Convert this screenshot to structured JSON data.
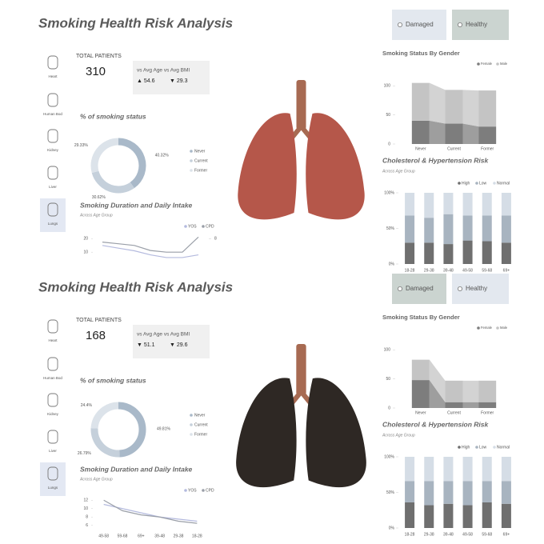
{
  "panels": [
    {
      "title": "Smoking Health Risk Analysis",
      "toggles": [
        "Damaged",
        "Healthy"
      ],
      "sidebar": [
        "Heart",
        "Human Bod",
        "Kidney",
        "Liver",
        "Lungs"
      ],
      "kpi": {
        "label": "TOTAL PATIENTS",
        "value": 310,
        "compare": "vs Avg Age vs Avg BMI",
        "age": "▲ 54.6",
        "bmi": "▼ 29.3"
      },
      "charts": [
        {
          "type": "pie",
          "title": "% of smoking status",
          "categories": [
            "Never",
            "Current",
            "Former"
          ],
          "values": [
            40.32,
            30.62,
            29.33
          ],
          "value_labels": [
            "40.32%",
            "30.62%",
            "29.33%"
          ],
          "colors": [
            "#a9b9c9",
            "#c5d0db",
            "#dce3ea"
          ]
        },
        {
          "type": "line",
          "title": "Smoking Duration and Daily Intake",
          "subtitle": "Across Age Group",
          "categories": [
            null,
            null,
            null,
            null,
            null,
            null,
            null
          ],
          "series": [
            {
              "name": "YOS",
              "color": "#b4bade",
              "values": [
                15,
                13,
                11,
                8,
                6,
                6,
                8
              ]
            },
            {
              "name": "CPD",
              "color": "#9a9fa8",
              "axis": "y2",
              "values": [
                7,
                6.5,
                6,
                4.5,
                4,
                4,
                8.5
              ]
            }
          ],
          "ylim": [
            0,
            25
          ],
          "yticks": [
            10,
            20
          ],
          "y2lim": [
            0,
            10
          ],
          "y2ticks": [
            8
          ]
        },
        {
          "type": "ribbon",
          "title": "Smoking Status By Gender",
          "categories": [
            "Never",
            "Current",
            "Former"
          ],
          "series": [
            {
              "name": "Female",
              "color": "#7d7d7d",
              "values": [
                40,
                35,
                30
              ]
            },
            {
              "name": "Male",
              "color": "#c4c4c4",
              "values": [
                65,
                58,
                62
              ]
            }
          ],
          "ylim": [
            0,
            110
          ],
          "yticks": [
            0,
            50,
            100
          ]
        },
        {
          "type": "bar",
          "stacked": true,
          "title": "Cholesterol & Hypertension Risk",
          "subtitle": "Across Age Group",
          "categories": [
            "18-28",
            "29-38",
            "39-48",
            "49-58",
            "59-68",
            "69+"
          ],
          "series": [
            {
              "name": "High",
              "color": "#6f6f6f",
              "values": [
                30,
                30,
                28,
                33,
                32,
                30
              ]
            },
            {
              "name": "Low",
              "color": "#a8b4c0",
              "values": [
                38,
                35,
                42,
                35,
                36,
                38
              ]
            },
            {
              "name": "Normal",
              "color": "#d5dde6",
              "values": [
                32,
                35,
                30,
                32,
                32,
                32
              ]
            }
          ],
          "ylim": [
            0,
            100
          ],
          "yticks": [
            {
              "value": 0,
              "label": "0%"
            },
            {
              "value": 50,
              "label": "50%"
            },
            {
              "value": 100,
              "label": "100%"
            }
          ]
        }
      ]
    },
    {
      "title": "Smoking Health Risk Analysis",
      "toggles": [
        "Damaged",
        "Healthy"
      ],
      "sidebar": [
        "Heart",
        "Human Bod",
        "Kidney",
        "Liver",
        "Lungs"
      ],
      "kpi": {
        "label": "TOTAL PATIENTS",
        "value": 168,
        "compare": "vs Avg Age vs Avg BMI",
        "age": "▼ 51.1",
        "bmi": "▼ 29.6"
      },
      "charts": [
        {
          "type": "pie",
          "title": "% of smoking status",
          "categories": [
            "Never",
            "Current",
            "Former"
          ],
          "values": [
            49.81,
            26.79,
            24.4
          ],
          "value_labels": [
            "49.81%",
            "26.79%",
            "24.4%"
          ],
          "colors": [
            "#a9b9c9",
            "#c5d0db",
            "#dce3ea"
          ]
        },
        {
          "type": "line",
          "title": "Smoking Duration and Daily Intake",
          "subtitle": "Across Age Group",
          "categories": [
            "49-58",
            "59-68",
            "69+",
            "39-48",
            "29-38",
            "18-28"
          ],
          "series": [
            {
              "name": "YOS",
              "color": "#b4bade",
              "values": [
                11,
                10,
                9,
                8,
                7.5,
                7
              ]
            },
            {
              "name": "CPD",
              "color": "#9a9fa8",
              "values": [
                12,
                9.5,
                8.5,
                8,
                7,
                6.5
              ]
            }
          ],
          "ylim": [
            5,
            13
          ],
          "yticks": [
            6,
            8,
            10,
            12
          ]
        },
        {
          "type": "ribbon",
          "title": "Smoking Status By Gender",
          "categories": [
            "Never",
            "Current",
            "Former"
          ],
          "series": [
            {
              "name": "Female",
              "color": "#7d7d7d",
              "values": [
                48,
                10,
                10
              ]
            },
            {
              "name": "Male",
              "color": "#c4c4c4",
              "values": [
                35,
                37,
                37
              ]
            }
          ],
          "ylim": [
            0,
            110
          ],
          "yticks": [
            0,
            50,
            100
          ]
        },
        {
          "type": "bar",
          "stacked": true,
          "title": "Cholesterol & Hypertension Risk",
          "subtitle": "Across Age Group",
          "categories": [
            "18-28",
            "29-38",
            "39-48",
            "49-58",
            "59-68",
            "69+"
          ],
          "series": [
            {
              "name": "High",
              "color": "#6f6f6f",
              "values": [
                36,
                32,
                34,
                32,
                36,
                34
              ]
            },
            {
              "name": "Low",
              "color": "#a8b4c0",
              "values": [
                30,
                34,
                32,
                34,
                30,
                32
              ]
            },
            {
              "name": "Normal",
              "color": "#d5dde6",
              "values": [
                34,
                34,
                34,
                34,
                34,
                34
              ]
            }
          ],
          "ylim": [
            0,
            100
          ],
          "yticks": [
            {
              "value": 0,
              "label": "0%"
            },
            {
              "value": 50,
              "label": "50%"
            },
            {
              "value": 100,
              "label": "100%"
            }
          ]
        }
      ]
    }
  ]
}
